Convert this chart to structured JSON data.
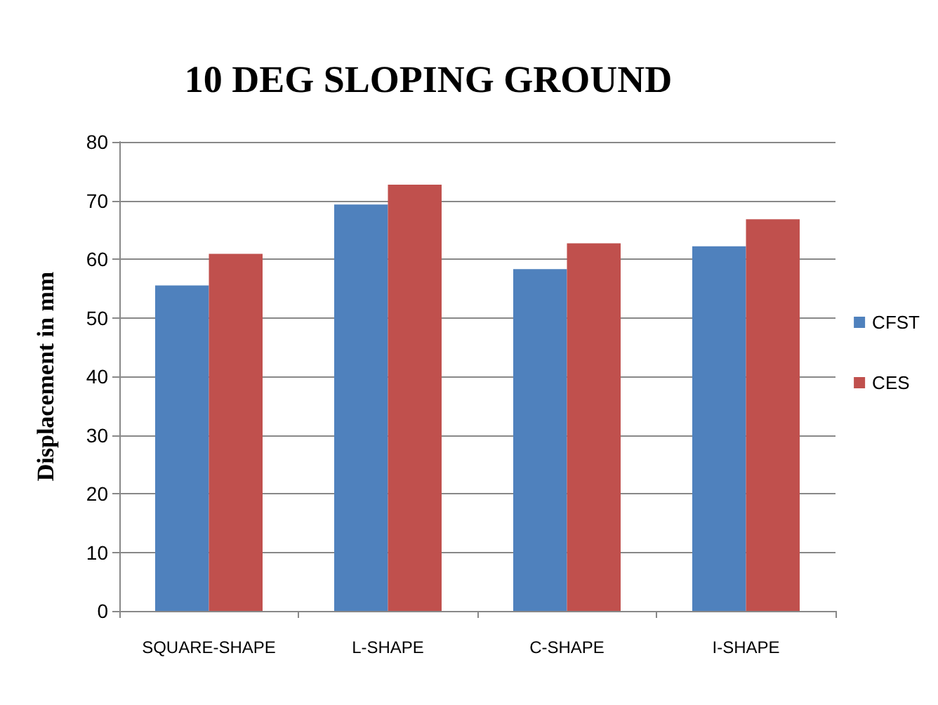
{
  "chart_data": {
    "type": "bar",
    "title": "10 DEG SLOPING GROUND",
    "ylabel": "Displacement in mm",
    "categories": [
      "SQUARE-SHAPE",
      "L-SHAPE",
      "C-SHAPE",
      "I-SHAPE"
    ],
    "series": [
      {
        "name": "CFST",
        "color": "#4f81bd",
        "values": [
          55.5,
          69.3,
          58.3,
          62.2
        ]
      },
      {
        "name": "CES",
        "color": "#c0504d",
        "values": [
          60.9,
          72.7,
          62.7,
          66.8
        ]
      }
    ],
    "ylim": [
      0,
      80
    ],
    "yticks": [
      0,
      10,
      20,
      30,
      40,
      50,
      60,
      70,
      80
    ],
    "grid": "y",
    "legend": "right"
  }
}
